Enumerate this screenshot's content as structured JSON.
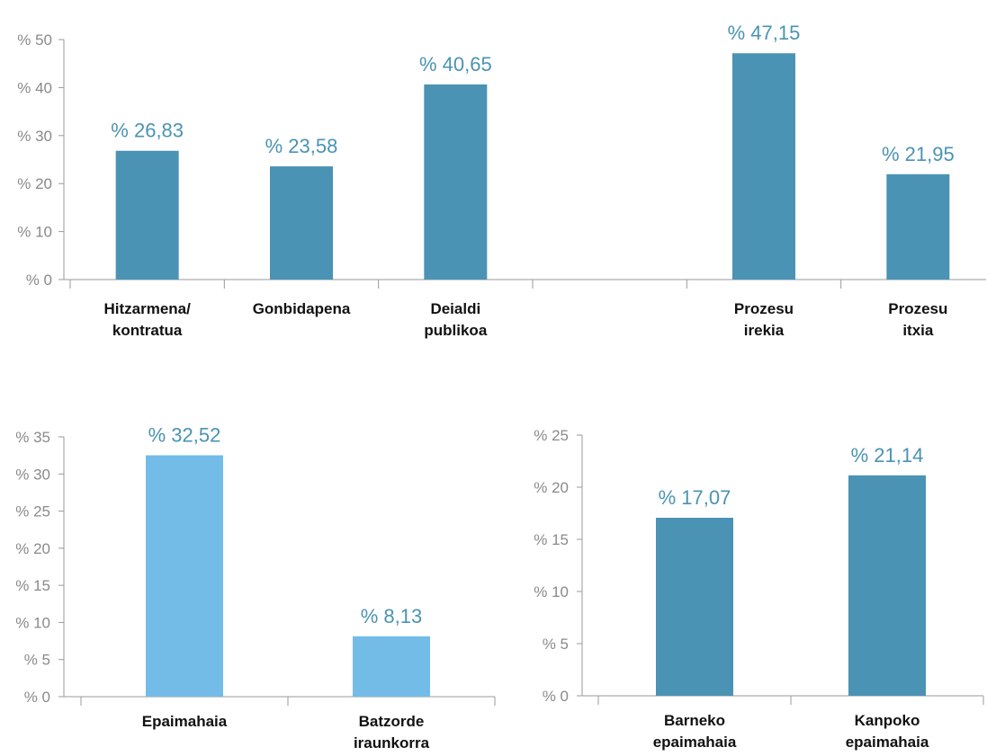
{
  "chart_data": [
    {
      "type": "bar",
      "categories": [
        [
          "Hitzarmena/",
          "kontratua"
        ],
        [
          "Gonbidapena"
        ],
        [
          "Deialdi",
          "publikoa"
        ],
        [],
        [
          "Prozesu",
          "irekia"
        ],
        [
          "Prozesu",
          "itxia"
        ]
      ],
      "values": [
        26.83,
        23.58,
        40.65,
        null,
        47.15,
        21.95
      ],
      "value_labels": [
        "% 26,83",
        "% 23,58",
        "% 40,65",
        "",
        "% 47,15",
        "% 21,95"
      ],
      "y_tick_labels": [
        "% 0",
        "% 10",
        "% 20",
        "% 30",
        "% 40",
        "% 50"
      ],
      "y_ticks": [
        0,
        10,
        20,
        30,
        40,
        50
      ],
      "ylim": [
        0,
        50
      ],
      "bar_color": "#4a93b4",
      "label_color": "#4a93b4",
      "grid": false
    },
    {
      "type": "bar",
      "categories": [
        [
          "Epaimahaia"
        ],
        [
          "Batzorde",
          "iraunkorra"
        ]
      ],
      "values": [
        32.52,
        8.13
      ],
      "value_labels": [
        "% 32,52",
        "% 8,13"
      ],
      "y_tick_labels": [
        "% 0",
        "% 5",
        "% 10",
        "% 15",
        "% 20",
        "% 25",
        "% 30",
        "% 35"
      ],
      "y_ticks": [
        0,
        5,
        10,
        15,
        20,
        25,
        30,
        35
      ],
      "ylim": [
        0,
        35
      ],
      "bar_color": "#73bce8",
      "label_color": "#4a93b4",
      "grid": false
    },
    {
      "type": "bar",
      "categories": [
        [
          "Barneko",
          "epaimahaia"
        ],
        [
          "Kanpoko",
          "epaimahaia"
        ]
      ],
      "values": [
        17.07,
        21.14
      ],
      "value_labels": [
        "% 17,07",
        "% 21,14"
      ],
      "y_tick_labels": [
        "% 0",
        "% 5",
        "% 10",
        "% 15",
        "% 20",
        "% 25"
      ],
      "y_ticks": [
        0,
        5,
        10,
        15,
        20,
        25
      ],
      "ylim": [
        0,
        25
      ],
      "bar_color": "#4a93b4",
      "label_color": "#4a93b4",
      "grid": false
    }
  ]
}
